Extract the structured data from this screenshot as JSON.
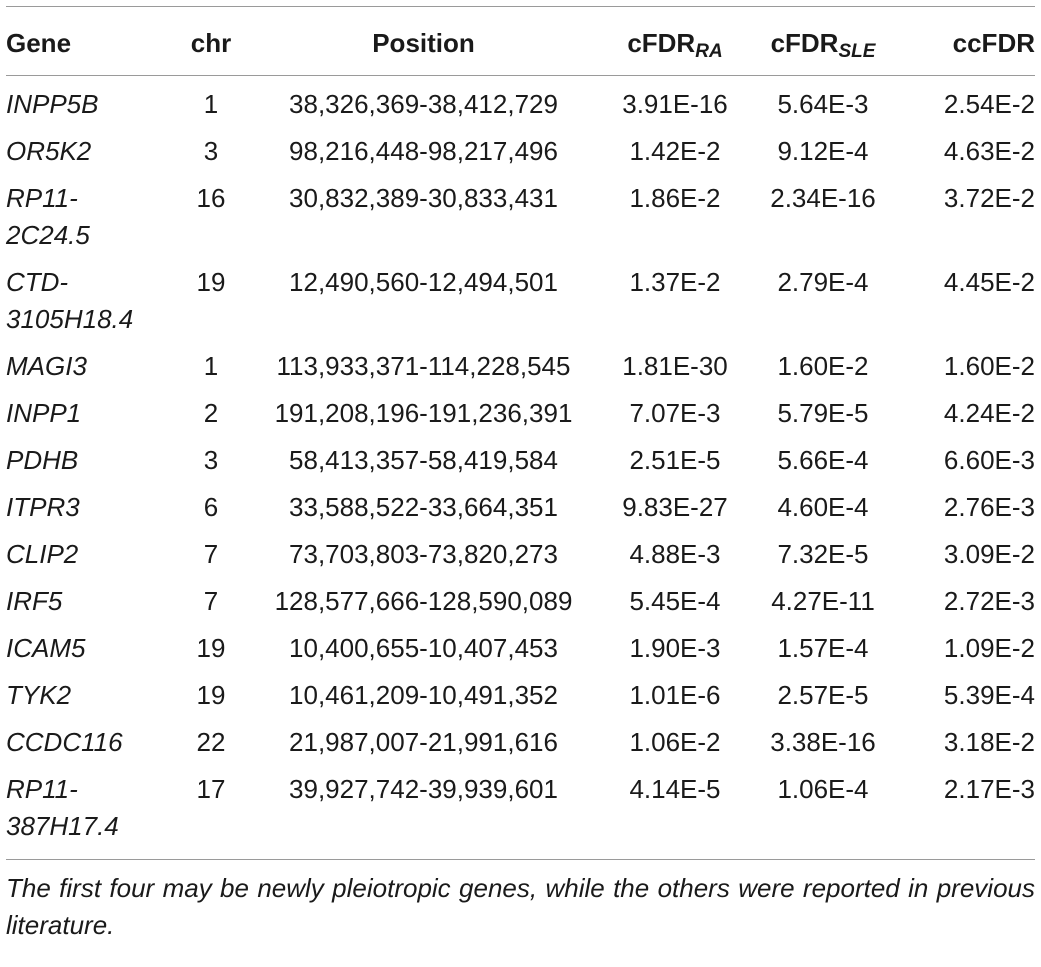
{
  "table": {
    "headers": {
      "gene": "Gene",
      "chr": "chr",
      "position": "Position",
      "cfdr_ra": "cFDR",
      "cfdr_ra_sub": "RA",
      "cfdr_sle": "cFDR",
      "cfdr_sle_sub": "SLE",
      "ccfdr": "ccFDR"
    },
    "rows": [
      {
        "gene_line1": "INPP5B",
        "gene_line2": "",
        "chr": "1",
        "position": "38,326,369-38,412,729",
        "cfdr_ra": "3.91E-16",
        "cfdr_sle": "5.64E-3",
        "ccfdr": "2.54E-2"
      },
      {
        "gene_line1": "OR5K2",
        "gene_line2": "",
        "chr": "3",
        "position": "98,216,448-98,217,496",
        "cfdr_ra": "1.42E-2",
        "cfdr_sle": "9.12E-4",
        "ccfdr": "4.63E-2"
      },
      {
        "gene_line1": "RP11-",
        "gene_line2": "2C24.5",
        "chr": "16",
        "position": "30,832,389-30,833,431",
        "cfdr_ra": "1.86E-2",
        "cfdr_sle": "2.34E-16",
        "ccfdr": "3.72E-2"
      },
      {
        "gene_line1": "CTD-",
        "gene_line2": "3105H18.4",
        "chr": "19",
        "position": "12,490,560-12,494,501",
        "cfdr_ra": "1.37E-2",
        "cfdr_sle": "2.79E-4",
        "ccfdr": "4.45E-2"
      },
      {
        "gene_line1": "MAGI3",
        "gene_line2": "",
        "chr": "1",
        "position": "113,933,371-114,228,545",
        "cfdr_ra": "1.81E-30",
        "cfdr_sle": "1.60E-2",
        "ccfdr": "1.60E-2"
      },
      {
        "gene_line1": "INPP1",
        "gene_line2": "",
        "chr": "2",
        "position": "191,208,196-191,236,391",
        "cfdr_ra": "7.07E-3",
        "cfdr_sle": "5.79E-5",
        "ccfdr": "4.24E-2"
      },
      {
        "gene_line1": "PDHB",
        "gene_line2": "",
        "chr": "3",
        "position": "58,413,357-58,419,584",
        "cfdr_ra": "2.51E-5",
        "cfdr_sle": "5.66E-4",
        "ccfdr": "6.60E-3"
      },
      {
        "gene_line1": "ITPR3",
        "gene_line2": "",
        "chr": "6",
        "position": "33,588,522-33,664,351",
        "cfdr_ra": "9.83E-27",
        "cfdr_sle": "4.60E-4",
        "ccfdr": "2.76E-3"
      },
      {
        "gene_line1": "CLIP2",
        "gene_line2": "",
        "chr": "7",
        "position": "73,703,803-73,820,273",
        "cfdr_ra": "4.88E-3",
        "cfdr_sle": "7.32E-5",
        "ccfdr": "3.09E-2"
      },
      {
        "gene_line1": "IRF5",
        "gene_line2": "",
        "chr": "7",
        "position": "128,577,666-128,590,089",
        "cfdr_ra": "5.45E-4",
        "cfdr_sle": "4.27E-11",
        "ccfdr": "2.72E-3"
      },
      {
        "gene_line1": "ICAM5",
        "gene_line2": "",
        "chr": "19",
        "position": "10,400,655-10,407,453",
        "cfdr_ra": "1.90E-3",
        "cfdr_sle": "1.57E-4",
        "ccfdr": "1.09E-2"
      },
      {
        "gene_line1": "TYK2",
        "gene_line2": "",
        "chr": "19",
        "position": "10,461,209-10,491,352",
        "cfdr_ra": "1.01E-6",
        "cfdr_sle": "2.57E-5",
        "ccfdr": "5.39E-4"
      },
      {
        "gene_line1": "CCDC116",
        "gene_line2": "",
        "chr": "22",
        "position": "21,987,007-21,991,616",
        "cfdr_ra": "1.06E-2",
        "cfdr_sle": "3.38E-16",
        "ccfdr": "3.18E-2"
      },
      {
        "gene_line1": "RP11-",
        "gene_line2": "387H17.4",
        "chr": "17",
        "position": "39,927,742-39,939,601",
        "cfdr_ra": "4.14E-5",
        "cfdr_sle": "1.06E-4",
        "ccfdr": "2.17E-3"
      }
    ]
  },
  "footnote": "The first four may be newly pleiotropic genes, while the others were reported in previous literature."
}
